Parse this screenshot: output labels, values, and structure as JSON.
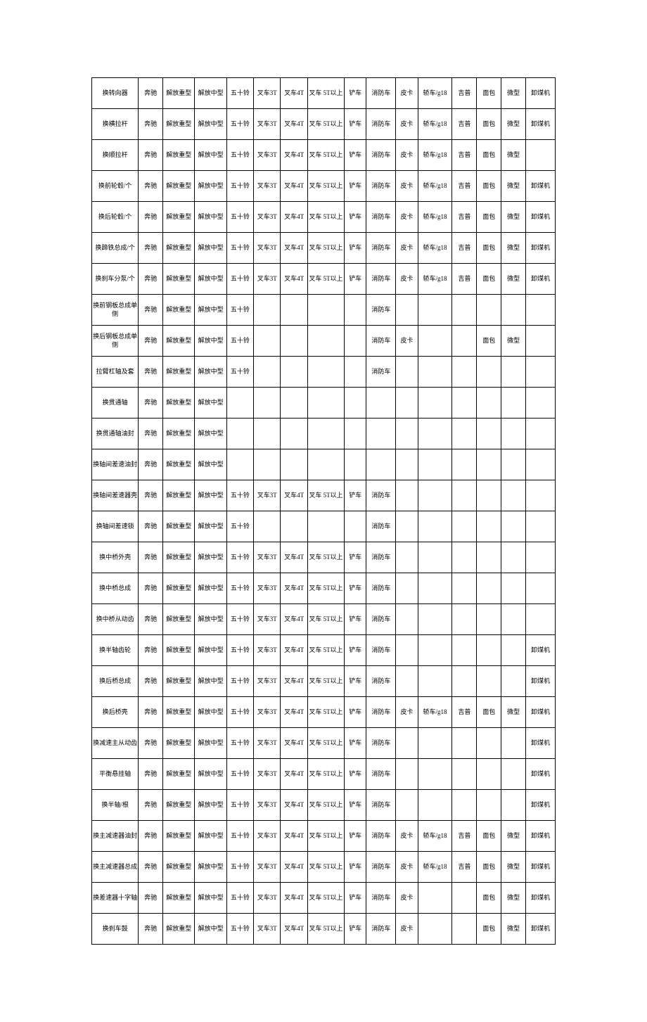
{
  "table": {
    "border_color": "#000000",
    "background_color": "#ffffff",
    "font_size": 9,
    "font_family": "SimSun",
    "column_widths_percent": [
      9.5,
      5,
      6.5,
      6.5,
      5.5,
      5.5,
      5.5,
      7.5,
      4.5,
      6,
      4.5,
      7,
      5,
      5,
      5,
      6
    ],
    "rows": [
      [
        "换转向器",
        "奔驰",
        "解放重型",
        "解放中型",
        "五十铃",
        "叉车3T",
        "叉车4T",
        "叉车 5T以上",
        "铲车",
        "消防车",
        "皮卡",
        "轿车/g18",
        "吉普",
        "面包",
        "微型",
        "卸煤机"
      ],
      [
        "换横拉杆",
        "奔驰",
        "解放重型",
        "解放中型",
        "五十铃",
        "叉车3T",
        "叉车4T",
        "叉车 5T以上",
        "铲车",
        "消防车",
        "皮卡",
        "轿车/g18",
        "吉普",
        "面包",
        "微型",
        "卸煤机"
      ],
      [
        "换顺拉杆",
        "奔驰",
        "解放重型",
        "解放中型",
        "五十铃",
        "叉车3T",
        "叉车4T",
        "叉车 5T以上",
        "铲车",
        "消防车",
        "皮卡",
        "轿车/g18",
        "吉普",
        "面包",
        "微型",
        ""
      ],
      [
        "换前轮毂/个",
        "奔驰",
        "解放重型",
        "解放中型",
        "五十铃",
        "叉车3T",
        "叉车4T",
        "叉车 5T以上",
        "铲车",
        "消防车",
        "皮卡",
        "轿车/g18",
        "吉普",
        "面包",
        "微型",
        "卸煤机"
      ],
      [
        "换后轮毂/个",
        "奔驰",
        "解放重型",
        "解放中型",
        "五十铃",
        "叉车3T",
        "叉车4T",
        "叉车 5T以上",
        "铲车",
        "消防车",
        "皮卡",
        "轿车/g18",
        "吉普",
        "面包",
        "微型",
        "卸煤机"
      ],
      [
        "换蹄铁总成/个",
        "奔驰",
        "解放重型",
        "解放中型",
        "五十铃",
        "叉车3T",
        "叉车4T",
        "叉车 5T以上",
        "铲车",
        "消防车",
        "皮卡",
        "轿车/g18",
        "吉普",
        "面包",
        "微型",
        "卸煤机"
      ],
      [
        "换刹车分泵/个",
        "奔驰",
        "解放重型",
        "解放中型",
        "五十铃",
        "叉车3T",
        "叉车4T",
        "叉车 5T以上",
        "铲车",
        "消防车",
        "皮卡",
        "轿车/g18",
        "吉普",
        "面包",
        "微型",
        "卸煤机"
      ],
      [
        "换前钢板总成单侧",
        "奔驰",
        "解放重型",
        "解放中型",
        "五十铃",
        "",
        "",
        "",
        "",
        "消防车",
        "",
        "",
        "",
        "",
        "",
        ""
      ],
      [
        "换后钢板总成单侧",
        "奔驰",
        "解放重型",
        "解放中型",
        "五十铃",
        "",
        "",
        "",
        "",
        "消防车",
        "皮卡",
        "",
        "",
        "面包",
        "微型",
        ""
      ],
      [
        "拉臂杠轴及套",
        "奔驰",
        "解放重型",
        "解放中型",
        "五十铃",
        "",
        "",
        "",
        "",
        "消防车",
        "",
        "",
        "",
        "",
        "",
        ""
      ],
      [
        "换贯通轴",
        "奔驰",
        "解放重型",
        "解放中型",
        "",
        "",
        "",
        "",
        "",
        "",
        "",
        "",
        "",
        "",
        "",
        ""
      ],
      [
        "换贯通轴油封",
        "奔驰",
        "解放重型",
        "解放中型",
        "",
        "",
        "",
        "",
        "",
        "",
        "",
        "",
        "",
        "",
        "",
        ""
      ],
      [
        "换轴间差速油封",
        "奔驰",
        "解放重型",
        "解放中型",
        "",
        "",
        "",
        "",
        "",
        "",
        "",
        "",
        "",
        "",
        "",
        ""
      ],
      [
        "换轴间差速器壳",
        "奔驰",
        "解放重型",
        "解放中型",
        "五十铃",
        "叉车3T",
        "叉车4T",
        "叉车 5T以上",
        "铲车",
        "消防车",
        "",
        "",
        "",
        "",
        "",
        ""
      ],
      [
        "换轴间差速锁",
        "奔驰",
        "解放重型",
        "解放中型",
        "五十铃",
        "",
        "",
        "",
        "",
        "消防车",
        "",
        "",
        "",
        "",
        "",
        ""
      ],
      [
        "换中桥外壳",
        "奔驰",
        "解放重型",
        "解放中型",
        "五十铃",
        "叉车3T",
        "叉车4T",
        "叉车 5T以上",
        "铲车",
        "消防车",
        "",
        "",
        "",
        "",
        "",
        ""
      ],
      [
        "换中桥总成",
        "奔驰",
        "解放重型",
        "解放中型",
        "五十铃",
        "叉车3T",
        "叉车4T",
        "叉车 5T以上",
        "铲车",
        "消防车",
        "",
        "",
        "",
        "",
        "",
        ""
      ],
      [
        "换中桥从动齿",
        "奔驰",
        "解放重型",
        "解放中型",
        "五十铃",
        "叉车3T",
        "叉车4T",
        "叉车 5T以上",
        "铲车",
        "消防车",
        "",
        "",
        "",
        "",
        "",
        ""
      ],
      [
        "换半轴齿轮",
        "奔驰",
        "解放重型",
        "解放中型",
        "五十铃",
        "叉车3T",
        "叉车4T",
        "叉车 5T以上",
        "铲车",
        "消防车",
        "",
        "",
        "",
        "",
        "",
        "卸煤机"
      ],
      [
        "换后桥总成",
        "奔驰",
        "解放重型",
        "解放中型",
        "五十铃",
        "叉车3T",
        "叉车4T",
        "叉车 5T以上",
        "铲车",
        "消防车",
        "",
        "",
        "",
        "",
        "",
        "卸煤机"
      ],
      [
        "换后桥壳",
        "奔驰",
        "解放重型",
        "解放中型",
        "五十铃",
        "叉车3T",
        "叉车4T",
        "叉车 5T以上",
        "铲车",
        "消防车",
        "皮卡",
        "轿车/g18",
        "吉普",
        "面包",
        "微型",
        "卸煤机"
      ],
      [
        "换减速主从动齿",
        "奔驰",
        "解放重型",
        "解放中型",
        "五十铃",
        "叉车3T",
        "叉车4T",
        "叉车 5T以上",
        "铲车",
        "消防车",
        "",
        "",
        "",
        "",
        "",
        "卸煤机"
      ],
      [
        "平衡悬挂轴",
        "奔驰",
        "解放重型",
        "解放中型",
        "五十铃",
        "叉车3T",
        "叉车4T",
        "叉车 5T以上",
        "铲车",
        "消防车",
        "",
        "",
        "",
        "",
        "",
        "卸煤机"
      ],
      [
        "换半轴/根",
        "奔驰",
        "解放重型",
        "解放中型",
        "五十铃",
        "叉车3T",
        "叉车4T",
        "叉车 5T以上",
        "铲车",
        "消防车",
        "",
        "",
        "",
        "",
        "",
        "卸煤机"
      ],
      [
        "换主减速器油封",
        "奔驰",
        "解放重型",
        "解放中型",
        "五十铃",
        "叉车3T",
        "叉车4T",
        "叉车 5T以上",
        "铲车",
        "消防车",
        "皮卡",
        "轿车/g18",
        "吉普",
        "面包",
        "微型",
        "卸煤机"
      ],
      [
        "换主减速器总成",
        "奔驰",
        "解放重型",
        "解放中型",
        "五十铃",
        "叉车3T",
        "叉车4T",
        "叉车 5T以上",
        "铲车",
        "消防车",
        "皮卡",
        "轿车/g18",
        "吉普",
        "面包",
        "微型",
        "卸煤机"
      ],
      [
        "换差速器十字轴",
        "奔驰",
        "解放重型",
        "解放中型",
        "五十铃",
        "叉车3T",
        "叉车4T",
        "叉车 5T以上",
        "铲车",
        "消防车",
        "皮卡",
        "",
        "",
        "面包",
        "微型",
        "卸煤机"
      ],
      [
        "换刹车鼓",
        "奔驰",
        "解放重型",
        "解放中型",
        "五十铃",
        "叉车3T",
        "叉车4T",
        "叉车 5T以上",
        "铲车",
        "消防车",
        "皮卡",
        "",
        "",
        "面包",
        "微型",
        "卸煤机"
      ]
    ]
  }
}
